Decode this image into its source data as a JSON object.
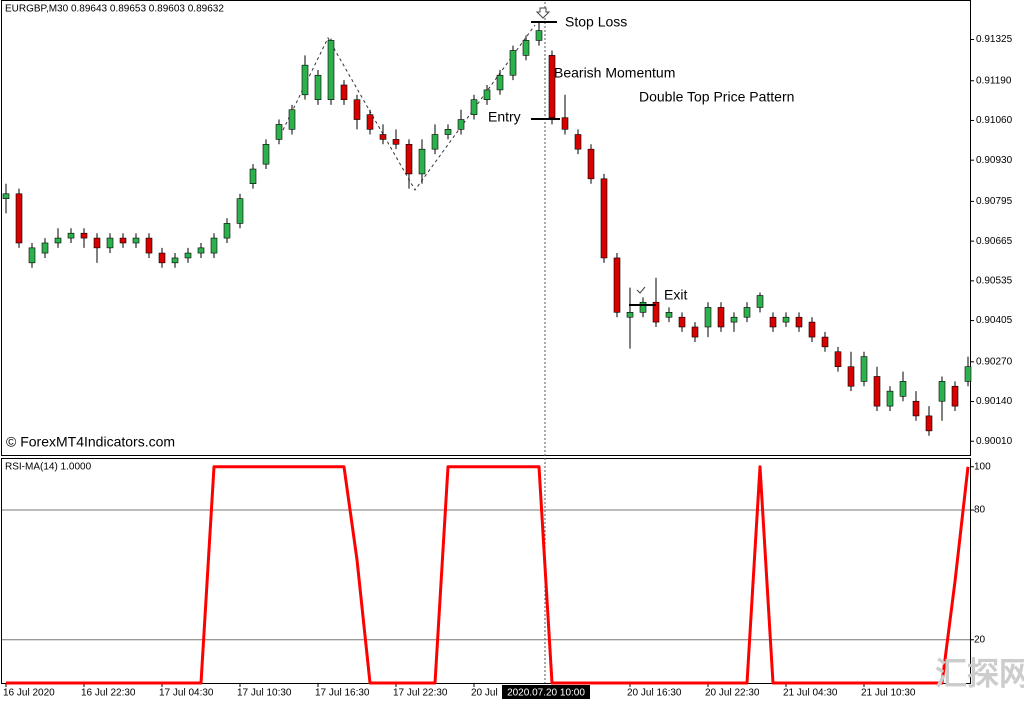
{
  "chart_data": [
    {
      "type": "candlestick",
      "title": "EURGBP,M30  0.89643 0.89653 0.89603 0.89632",
      "annotations": {
        "stop_loss": "Stop Loss",
        "bearish_momentum": "Bearish Momentum",
        "pattern": "Double Top Price Pattern",
        "entry": "Entry",
        "exit": "Exit",
        "copyright": "© ForexMT4Indicators.com"
      },
      "cursor_label": "2020.07.20 10:00",
      "watermark": "汇探网",
      "categories": [
        "16 Jul 2020",
        null,
        null,
        null,
        null,
        null,
        "16 Jul 22:30",
        null,
        null,
        null,
        null,
        null,
        "17 Jul 04:30",
        null,
        null,
        null,
        null,
        null,
        "17 Jul 10:30",
        null,
        null,
        null,
        null,
        null,
        "17 Jul 16:30",
        null,
        null,
        null,
        null,
        null,
        "17 Jul 22:30",
        null,
        null,
        null,
        null,
        null,
        "20 Jul",
        null,
        null,
        null,
        null,
        null,
        null,
        null,
        null,
        null,
        null,
        null,
        "20 Jul 16:30",
        null,
        null,
        null,
        null,
        null,
        "20 Jul 22:30",
        null,
        null,
        null,
        null,
        null,
        "21 Jul 04:30",
        null,
        null,
        null,
        null,
        null,
        "21 Jul 10:30",
        null,
        null,
        null,
        null,
        null,
        null,
        null,
        null
      ],
      "open": [
        0.90804,
        0.9082,
        0.90594,
        0.90626,
        0.90659,
        0.90675,
        0.90691,
        0.90675,
        0.90643,
        0.90675,
        0.90659,
        0.90675,
        0.90626,
        0.90594,
        0.9061,
        0.90626,
        0.90626,
        0.90675,
        0.90723,
        0.90853,
        0.90917,
        0.90998,
        0.91031,
        0.91144,
        0.91128,
        0.91128,
        0.91176,
        0.91128,
        0.91079,
        0.91014,
        0.90998,
        0.90982,
        0.90885,
        0.90966,
        0.91014,
        0.91031,
        0.91079,
        0.91128,
        0.9116,
        0.91208,
        0.91273,
        0.91322,
        0.91273,
        0.91069,
        0.91014,
        0.90966,
        0.90869,
        0.9061,
        0.90416,
        0.90432,
        0.90465,
        0.90416,
        0.90416,
        0.90384,
        0.90384,
        0.90448,
        0.904,
        0.90416,
        0.90448,
        0.90416,
        0.904,
        0.90416,
        0.904,
        0.90351,
        0.90303,
        0.90254,
        0.90206,
        0.90222,
        0.90125,
        0.90157,
        0.90141,
        0.90093,
        0.90141,
        0.9019,
        0.90206
      ],
      "high": [
        0.90853,
        0.90837,
        0.90659,
        0.90675,
        0.90707,
        0.90707,
        0.90707,
        0.90691,
        0.90691,
        0.90691,
        0.90691,
        0.90691,
        0.90643,
        0.90626,
        0.90643,
        0.90659,
        0.90691,
        0.9074,
        0.9082,
        0.90917,
        0.90998,
        0.91063,
        0.91111,
        0.91273,
        0.91225,
        0.91328,
        0.91192,
        0.91144,
        0.91095,
        0.91047,
        0.91031,
        0.90998,
        0.90998,
        0.91047,
        0.91047,
        0.91095,
        0.91144,
        0.91176,
        0.91225,
        0.91305,
        0.91338,
        0.9138,
        0.91289,
        0.91144,
        0.91031,
        0.90982,
        0.90885,
        0.90626,
        0.90513,
        0.90481,
        0.90545,
        0.90448,
        0.90432,
        0.904,
        0.90465,
        0.90465,
        0.90432,
        0.90465,
        0.90497,
        0.90432,
        0.90432,
        0.90432,
        0.90416,
        0.90368,
        0.90319,
        0.90303,
        0.90303,
        0.90254,
        0.9019,
        0.90238,
        0.90174,
        0.90125,
        0.90222,
        0.90206,
        0.90287
      ],
      "low": [
        0.90756,
        0.90643,
        0.90578,
        0.9061,
        0.90643,
        0.90659,
        0.90643,
        0.90594,
        0.90626,
        0.90643,
        0.90643,
        0.9061,
        0.90578,
        0.90578,
        0.90594,
        0.9061,
        0.9061,
        0.90659,
        0.90707,
        0.90837,
        0.90901,
        0.90982,
        0.91014,
        0.91128,
        0.91111,
        0.91111,
        0.91111,
        0.91031,
        0.91014,
        0.90982,
        0.90966,
        0.90837,
        0.90853,
        0.9095,
        0.90998,
        0.91014,
        0.91063,
        0.91111,
        0.91144,
        0.91192,
        0.91257,
        0.91305,
        0.91047,
        0.91014,
        0.9095,
        0.90853,
        0.90594,
        0.90416,
        0.90313,
        0.90416,
        0.90384,
        0.904,
        0.90368,
        0.90335,
        0.90351,
        0.90368,
        0.90368,
        0.904,
        0.90432,
        0.90368,
        0.90384,
        0.90368,
        0.90335,
        0.90303,
        0.90238,
        0.90174,
        0.9019,
        0.90109,
        0.90109,
        0.90141,
        0.90077,
        0.90028,
        0.90077,
        0.90109,
        0.9019
      ],
      "close": [
        0.9082,
        0.90659,
        0.90643,
        0.90659,
        0.90675,
        0.90691,
        0.90675,
        0.90643,
        0.90675,
        0.90659,
        0.90675,
        0.90626,
        0.90594,
        0.9061,
        0.90626,
        0.90643,
        0.90675,
        0.90723,
        0.90804,
        0.90901,
        0.90982,
        0.91047,
        0.91095,
        0.91241,
        0.91208,
        0.91322,
        0.91128,
        0.91063,
        0.91031,
        0.90998,
        0.90982,
        0.90885,
        0.90966,
        0.91014,
        0.91031,
        0.91063,
        0.91128,
        0.9116,
        0.91208,
        0.91289,
        0.91322,
        0.91354,
        0.91069,
        0.91031,
        0.90966,
        0.90869,
        0.9061,
        0.90432,
        0.90432,
        0.90465,
        0.904,
        0.90432,
        0.90384,
        0.90351,
        0.90448,
        0.90384,
        0.90416,
        0.90448,
        0.90487,
        0.90384,
        0.90416,
        0.90384,
        0.90351,
        0.90319,
        0.90254,
        0.9019,
        0.90287,
        0.90125,
        0.90174,
        0.90206,
        0.90093,
        0.90044,
        0.90206,
        0.90125,
        0.90254
      ],
      "up_color": "#2db14d",
      "down_color": "#d90000",
      "ylim": [
        0.89965,
        0.91451
      ],
      "yticks": [
        0.91325,
        {
          "value": 0.9119,
          "label": "0.91190"
        },
        {
          "value": 0.9106,
          "label": "0.91060"
        },
        {
          "value": 0.9093,
          "label": "0.90930"
        },
        0.90795,
        0.90665,
        0.90535,
        0.90405,
        {
          "value": 0.9027,
          "label": "0.90270"
        },
        {
          "value": 0.9014,
          "label": "0.90140"
        },
        {
          "value": 0.9001,
          "label": "0.90010"
        }
      ]
    },
    {
      "type": "line",
      "title": "RSI-MA(14) 1.0000",
      "values": [
        0,
        0,
        0,
        0,
        0,
        0,
        0,
        0,
        0,
        0,
        0,
        0,
        0,
        0,
        0,
        0,
        100,
        100,
        100,
        100,
        100,
        100,
        100,
        100,
        100,
        100,
        100,
        57,
        0,
        0,
        0,
        0,
        0,
        0,
        100,
        100,
        100,
        100,
        100,
        100,
        100,
        100,
        0,
        0,
        0,
        0,
        0,
        0,
        0,
        0,
        0,
        0,
        0,
        0,
        0,
        0,
        0,
        0,
        100,
        0,
        0,
        0,
        0,
        0,
        0,
        0,
        0,
        0,
        0,
        0,
        0,
        0,
        0,
        47,
        100
      ],
      "color": "#ff0000",
      "ylim": [
        0,
        103.6
      ],
      "yticks": [
        100,
        80,
        20
      ],
      "levels": [
        80,
        20
      ]
    }
  ]
}
